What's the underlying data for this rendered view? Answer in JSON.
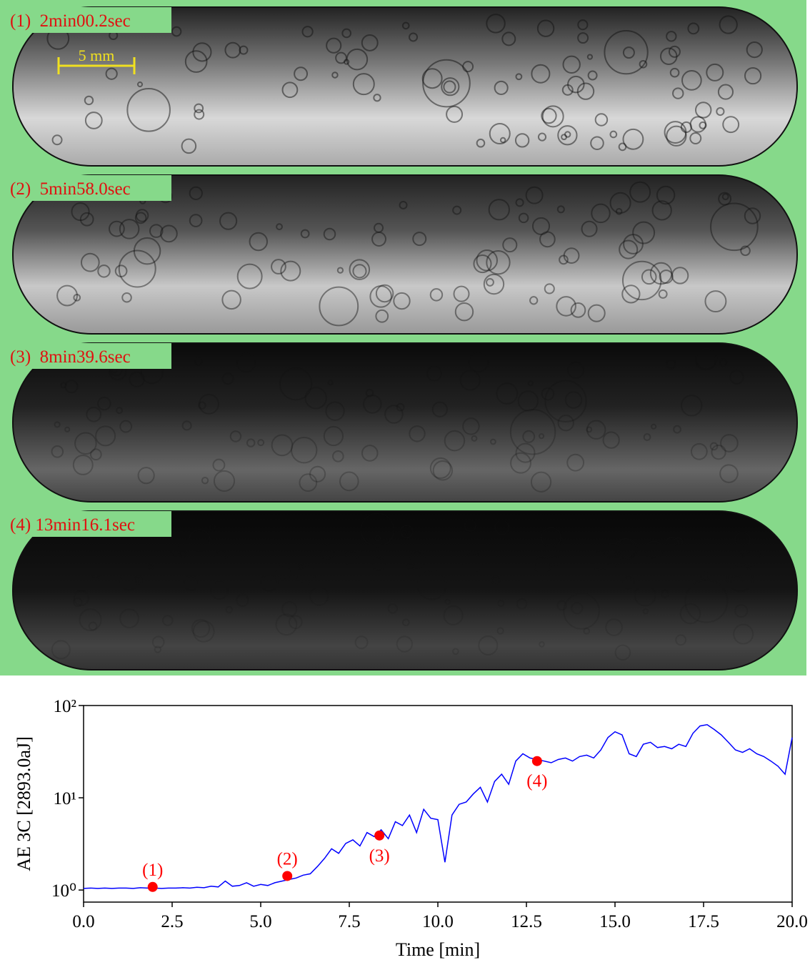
{
  "panels": [
    {
      "label": "(1)  2min00.2sec"
    },
    {
      "label": "(2)  5min58.0sec"
    },
    {
      "label": "(3)  8min39.6sec"
    },
    {
      "label": "(4) 13min16.1sec"
    }
  ],
  "scale_bar": "5 mm",
  "chart_data": {
    "type": "line",
    "x_label": "Time [min]",
    "y_label": "AE 3C [2893.0aJ]",
    "log_y": true,
    "xlim": [
      0,
      20
    ],
    "ylim": [
      0.74,
      100
    ],
    "xticks": [
      {
        "value": 0,
        "label": "0.0"
      },
      2.5,
      {
        "value": 5,
        "label": "5.0"
      },
      7.5,
      {
        "value": 10,
        "label": "10.0"
      },
      12.5,
      {
        "value": 15,
        "label": "15.0"
      },
      17.5,
      {
        "value": 20,
        "label": "20.0"
      }
    ],
    "yticks": [
      {
        "value": 1,
        "label": "10⁰"
      },
      {
        "value": 10,
        "label": "10¹"
      },
      {
        "value": 100,
        "label": "10²"
      }
    ],
    "series": [
      {
        "color": "#0000ff",
        "x": [
          0,
          0.2,
          0.4,
          0.6,
          0.8,
          1,
          1.2,
          1.4,
          1.6,
          1.8,
          2,
          2.2,
          2.4,
          2.6,
          2.8,
          3,
          3.2,
          3.4,
          3.6,
          3.8,
          4,
          4.2,
          4.4,
          4.6,
          4.8,
          5,
          5.2,
          5.4,
          5.6,
          5.8,
          6,
          6.2,
          6.4,
          6.6,
          6.8,
          7,
          7.2,
          7.4,
          7.6,
          7.8,
          8,
          8.2,
          8.4,
          8.6,
          8.8,
          9,
          9.2,
          9.4,
          9.6,
          9.8,
          10,
          10.2,
          10.4,
          10.6,
          10.8,
          11,
          11.2,
          11.4,
          11.6,
          11.8,
          12,
          12.2,
          12.4,
          12.6,
          12.8,
          13,
          13.2,
          13.4,
          13.6,
          13.8,
          14,
          14.2,
          14.4,
          14.6,
          14.8,
          15,
          15.2,
          15.4,
          15.6,
          15.8,
          16,
          16.2,
          16.4,
          16.6,
          16.8,
          17,
          17.2,
          17.4,
          17.6,
          17.8,
          18,
          18.2,
          18.4,
          18.6,
          18.8,
          19,
          19.2,
          19.4,
          19.6,
          19.8,
          20
        ],
        "values": [
          1.04,
          1.05,
          1.04,
          1.05,
          1.04,
          1.05,
          1.05,
          1.04,
          1.06,
          1.05,
          1.05,
          1.04,
          1.05,
          1.05,
          1.06,
          1.05,
          1.07,
          1.06,
          1.1,
          1.08,
          1.25,
          1.1,
          1.12,
          1.2,
          1.1,
          1.15,
          1.12,
          1.2,
          1.25,
          1.3,
          1.35,
          1.45,
          1.5,
          1.8,
          2.2,
          2.8,
          2.5,
          3.2,
          3.5,
          3.0,
          4.2,
          3.8,
          4.5,
          3.6,
          5.5,
          5.0,
          6.5,
          4.2,
          7.5,
          6.0,
          5.8,
          2.0,
          6.5,
          8.5,
          9.0,
          11,
          13,
          9,
          15,
          18,
          14,
          25,
          30,
          27,
          26,
          25,
          24,
          26,
          27,
          25,
          28,
          29,
          27,
          33,
          45,
          52,
          48,
          30,
          28,
          38,
          40,
          35,
          36,
          34,
          38,
          36,
          50,
          60,
          62,
          55,
          48,
          40,
          33,
          31,
          34,
          30,
          28,
          25,
          22,
          18,
          45
        ]
      }
    ],
    "points": {
      "color": "#ff0000",
      "x": [
        1.95,
        5.75,
        8.35,
        12.8
      ],
      "values": [
        1.08,
        1.42,
        3.9,
        25
      ],
      "labels": [
        "(1)",
        "(2)",
        "(3)",
        "(4)"
      ]
    }
  }
}
